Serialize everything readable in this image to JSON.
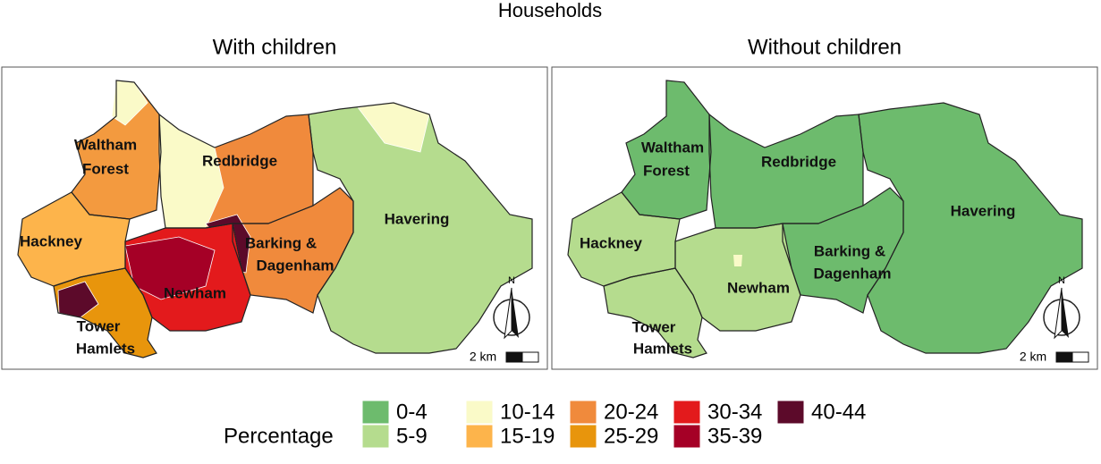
{
  "title": "Households",
  "panels": [
    {
      "title": "With children",
      "north": "N",
      "scale": "2 km",
      "labels": [
        "Waltham",
        "Forest",
        "Redbridge",
        "Havering",
        "Hackney",
        "Barking &",
        "Dagenham",
        "Newham",
        "Tower",
        "Hamlets"
      ]
    },
    {
      "title": "Without children",
      "north": "N",
      "scale": "2 km",
      "labels": [
        "Waltham",
        "Forest",
        "Redbridge",
        "Havering",
        "Hackney",
        "Barking &",
        "Dagenham",
        "Newham",
        "Tower",
        "Hamlets"
      ]
    }
  ],
  "legend": {
    "title": "Percentage",
    "items": [
      {
        "label": "0-4",
        "color": "#6dbb6d"
      },
      {
        "label": "5-9",
        "color": "#b5dc8e"
      },
      {
        "label": "10-14",
        "color": "#fafac8"
      },
      {
        "label": "15-19",
        "color": "#fdb44b"
      },
      {
        "label": "20-24",
        "color": "#f08a3c"
      },
      {
        "label": "25-29",
        "color": "#e8950c"
      },
      {
        "label": "30-34",
        "color": "#e31a1c"
      },
      {
        "label": "35-39",
        "color": "#a50026"
      },
      {
        "label": "40-44",
        "color": "#5c0a2a"
      }
    ]
  }
}
